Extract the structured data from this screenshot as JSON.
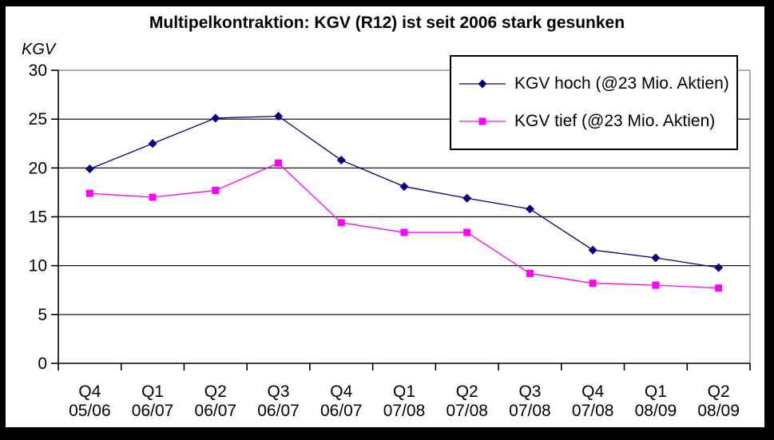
{
  "frame": {
    "background": "#FFFFFF",
    "border_color": "#000000"
  },
  "chart_data": {
    "type": "line",
    "title": "Multipelkontraktion: KGV (R12) ist seit 2006 stark gesunken",
    "ylabel": "KGV",
    "xlabel": "",
    "ylim": [
      0,
      30
    ],
    "yticks": [
      0,
      5,
      10,
      15,
      20,
      25,
      30
    ],
    "grid": "horizontal",
    "legend_position": "top-right",
    "categories": [
      "Q4 05/06",
      "Q1 06/07",
      "Q2 06/07",
      "Q3 06/07",
      "Q4 06/07",
      "Q1 07/08",
      "Q2 07/08",
      "Q3 07/08",
      "Q4 07/08",
      "Q1 08/09",
      "Q2 08/09"
    ],
    "category_labels": [
      [
        "Q4",
        "05/06"
      ],
      [
        "Q1",
        "06/07"
      ],
      [
        "Q2",
        "06/07"
      ],
      [
        "Q3",
        "06/07"
      ],
      [
        "Q4",
        "06/07"
      ],
      [
        "Q1",
        "07/08"
      ],
      [
        "Q2",
        "07/08"
      ],
      [
        "Q3",
        "07/08"
      ],
      [
        "Q4",
        "07/08"
      ],
      [
        "Q1",
        "08/09"
      ],
      [
        "Q2",
        "08/09"
      ]
    ],
    "series": [
      {
        "name": "KGV hoch (@23 Mio. Aktien)",
        "color": "#000080",
        "marker": "diamond",
        "values": [
          19.9,
          22.5,
          25.1,
          25.3,
          20.8,
          18.1,
          16.9,
          15.8,
          11.6,
          10.8,
          9.8
        ]
      },
      {
        "name": "KGV tief (@23 Mio. Aktien)",
        "color": "#FF00FF",
        "marker": "square",
        "values": [
          17.4,
          17.0,
          17.7,
          20.5,
          14.4,
          13.4,
          13.4,
          9.2,
          8.2,
          8.0,
          7.7
        ]
      }
    ],
    "colors": {
      "gridline": "#000000",
      "plot_border": "#808080",
      "axis": "#000000",
      "text": "#000000",
      "background": "#FFFFFF"
    }
  }
}
